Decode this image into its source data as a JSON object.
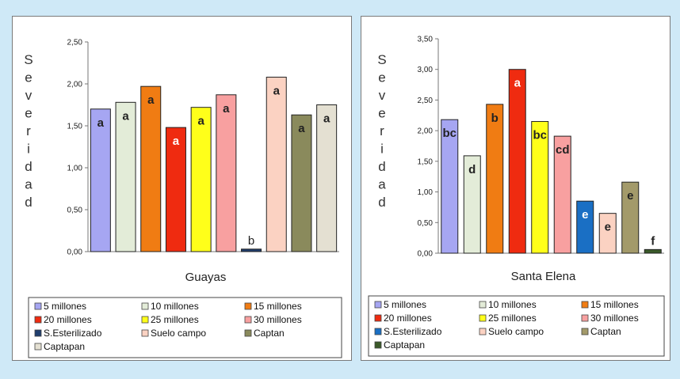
{
  "chart_data": [
    {
      "type": "bar",
      "panel": "left",
      "title": "",
      "xlabel": "Guayas",
      "ylabel": "Severidad",
      "ylim": [
        0,
        2.5
      ],
      "ytick_labels": [
        "0,00",
        "0,50",
        "1,00",
        "1,50",
        "2,00",
        "2,50"
      ],
      "categories": [
        "5 millones",
        "10 millones",
        "15 millones",
        "20 millones",
        "25 millones",
        "30 millones",
        "S.Esterilizado",
        "Suelo campo",
        "Captan",
        "Captapan"
      ],
      "values": [
        1.7,
        1.78,
        1.97,
        1.48,
        1.72,
        1.87,
        0.03,
        2.08,
        1.63,
        1.75
      ],
      "letters": [
        "a",
        "a",
        "a",
        "a",
        "a",
        "a",
        "b",
        "a",
        "a",
        "a"
      ],
      "colors": [
        "#a6a6f2",
        "#e3ecd8",
        "#f07c13",
        "#ef2b10",
        "#ffff1a",
        "#f8a0a0",
        "#1f3e6e",
        "#fbd2c2",
        "#8a8a5c",
        "#e4e0d2"
      ],
      "grid": false,
      "legend": "bottom"
    },
    {
      "type": "bar",
      "panel": "right",
      "title": "",
      "xlabel": "Santa Elena",
      "ylabel": "Severidad",
      "ylim": [
        0,
        3.5
      ],
      "ytick_labels": [
        "0,00",
        "0,50",
        "1,00",
        "1,50",
        "2,00",
        "2,50",
        "3,00",
        "3,50"
      ],
      "categories": [
        "5 millones",
        "10 millones",
        "15 millones",
        "20 millones",
        "25 millones",
        "30 millones",
        "S.Esterilizado",
        "Suelo campo",
        "Captan",
        "Captapan"
      ],
      "values": [
        2.18,
        1.59,
        2.43,
        3.0,
        2.15,
        1.91,
        0.85,
        0.65,
        1.16,
        0.06
      ],
      "letters": [
        "bc",
        "d",
        "b",
        "a",
        "bc",
        "cd",
        "e",
        "e",
        "e",
        "f"
      ],
      "colors": [
        "#a6a6f2",
        "#e3ecd8",
        "#f07c13",
        "#ef2b10",
        "#ffff1a",
        "#f8a0a0",
        "#1a6fc4",
        "#fbd2c2",
        "#a39a6a",
        "#3b5a2a"
      ],
      "grid": false,
      "legend": "bottom"
    }
  ]
}
